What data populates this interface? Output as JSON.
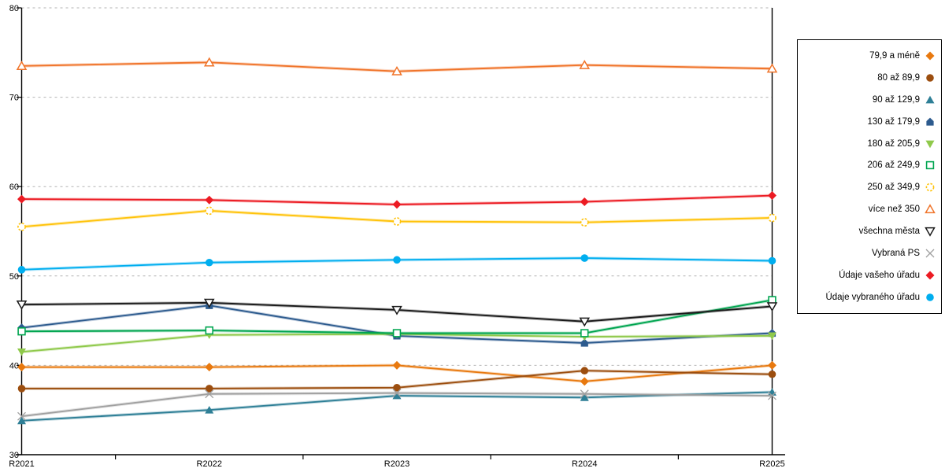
{
  "chart_data": {
    "type": "line",
    "title": "",
    "xlabel": "",
    "ylabel": "",
    "x": [
      "R2021",
      "R2022",
      "R2023",
      "R2024",
      "R2025"
    ],
    "ylim": [
      30,
      80
    ],
    "y_ticks": [
      80,
      70,
      60,
      50,
      40,
      30
    ],
    "grid": "horizontal-dashed",
    "legend_position": "right",
    "series": [
      {
        "name": "79,9 a méně",
        "marker": "diamond",
        "color": "#E8790F",
        "values": [
          39.8,
          39.8,
          40.0,
          38.2,
          40.0
        ]
      },
      {
        "name": "80 až 89,9",
        "marker": "circle",
        "color": "#9C4E0F",
        "values": [
          37.4,
          37.4,
          37.5,
          39.4,
          39.0
        ]
      },
      {
        "name": "90 až 129,9",
        "marker": "triangle-up",
        "color": "#2E7F96",
        "values": [
          33.8,
          35.0,
          36.6,
          36.4,
          37.0
        ]
      },
      {
        "name": "130 až 179,9",
        "marker": "pentagon",
        "color": "#2D5B8E",
        "values": [
          44.2,
          46.7,
          43.3,
          42.5,
          43.6
        ]
      },
      {
        "name": "180 až 205,9",
        "marker": "triangle-down",
        "color": "#8FC94B",
        "values": [
          41.5,
          43.4,
          43.5,
          43.2,
          43.3
        ]
      },
      {
        "name": "206 až 249,9",
        "marker": "square-open",
        "color": "#00A550",
        "values": [
          43.8,
          43.9,
          43.6,
          43.6,
          47.3
        ]
      },
      {
        "name": "250 až 349,9",
        "marker": "circle-open-dashed",
        "color": "#FFC30B",
        "values": [
          55.5,
          57.3,
          56.1,
          56.0,
          56.5
        ]
      },
      {
        "name": "více než 350",
        "marker": "triangle-open",
        "color": "#F0742A",
        "values": [
          73.5,
          73.9,
          72.9,
          73.6,
          73.2
        ]
      },
      {
        "name": "všechna města",
        "marker": "triangle-down-open",
        "color": "#1A1A1A",
        "values": [
          46.8,
          47.0,
          46.2,
          44.9,
          46.6
        ]
      },
      {
        "name": "Vybraná PS",
        "marker": "x",
        "color": "#A0A0A0",
        "values": [
          34.3,
          36.8,
          36.9,
          36.8,
          36.6
        ]
      },
      {
        "name": "Údaje vašeho úřadu",
        "marker": "diamond",
        "color": "#EC1B23",
        "values": [
          58.6,
          58.5,
          58.0,
          58.3,
          59.0
        ]
      },
      {
        "name": "Údaje vybraného úřadu",
        "marker": "circle",
        "color": "#00AEEF",
        "values": [
          50.7,
          51.5,
          51.8,
          52.0,
          51.7
        ]
      }
    ]
  },
  "style_colors": {
    "axis": "#000000",
    "gridline": "#B3B3B3",
    "text": "#000000",
    "background": "#FFFFFF"
  }
}
